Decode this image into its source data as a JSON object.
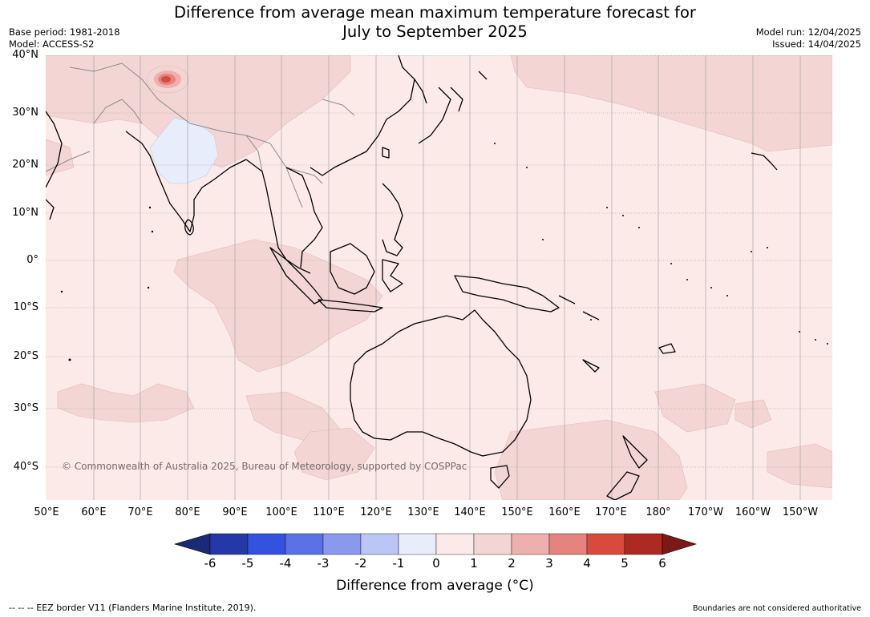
{
  "title": {
    "line1": "Difference from average mean maximum temperature forecast for",
    "line2": "July to September 2025"
  },
  "meta": {
    "base_period": "Base period: 1981-2018",
    "model": "Model: ACCESS-S2",
    "model_run": "Model run: 12/04/2025",
    "issued": "Issued: 14/04/2025"
  },
  "map": {
    "copyright": "© Commonwealth of Australia 2025, Bureau of Meteorology, supported by COSPPac",
    "lat_labels": [
      "40°N",
      "30°N",
      "20°N",
      "10°N",
      "0°",
      "10°S",
      "20°S",
      "30°S",
      "40°S"
    ],
    "lon_labels": [
      "50°E",
      "60°E",
      "70°E",
      "80°E",
      "90°E",
      "100°E",
      "110°E",
      "120°E",
      "130°E",
      "140°E",
      "150°E",
      "160°E",
      "170°E",
      "180°",
      "170°W",
      "160°W",
      "150°W"
    ],
    "colors": {
      "ocean_base": "#fbeae8",
      "warm_patch": "#f3d6d3",
      "cool_patch": "#e8edfb",
      "hot_spot": "#d94a3e",
      "coast": "#000000",
      "border": "#8a8a8a",
      "grid": "#9a9a9a"
    }
  },
  "colorbar": {
    "labels": [
      "-6",
      "-5",
      "-4",
      "-3",
      "-2",
      "-1",
      "0",
      "1",
      "2",
      "3",
      "4",
      "5",
      "6"
    ],
    "colors": [
      "#2438a8",
      "#3352e0",
      "#5a72e6",
      "#8a99ec",
      "#bcc6f4",
      "#e8ecfb",
      "#fbeae8",
      "#f3d6d3",
      "#eeb0ac",
      "#e6837c",
      "#d94a3e",
      "#ac2a22"
    ],
    "under_color": "#1a2a78",
    "over_color": "#7a1a16",
    "title": "Difference from average (°C)"
  },
  "footer": {
    "eez": "--  --  -- EEZ border V11 (Flanders Marine Institute, 2019).",
    "disclaimer": "Boundaries are not considered authoritative"
  }
}
